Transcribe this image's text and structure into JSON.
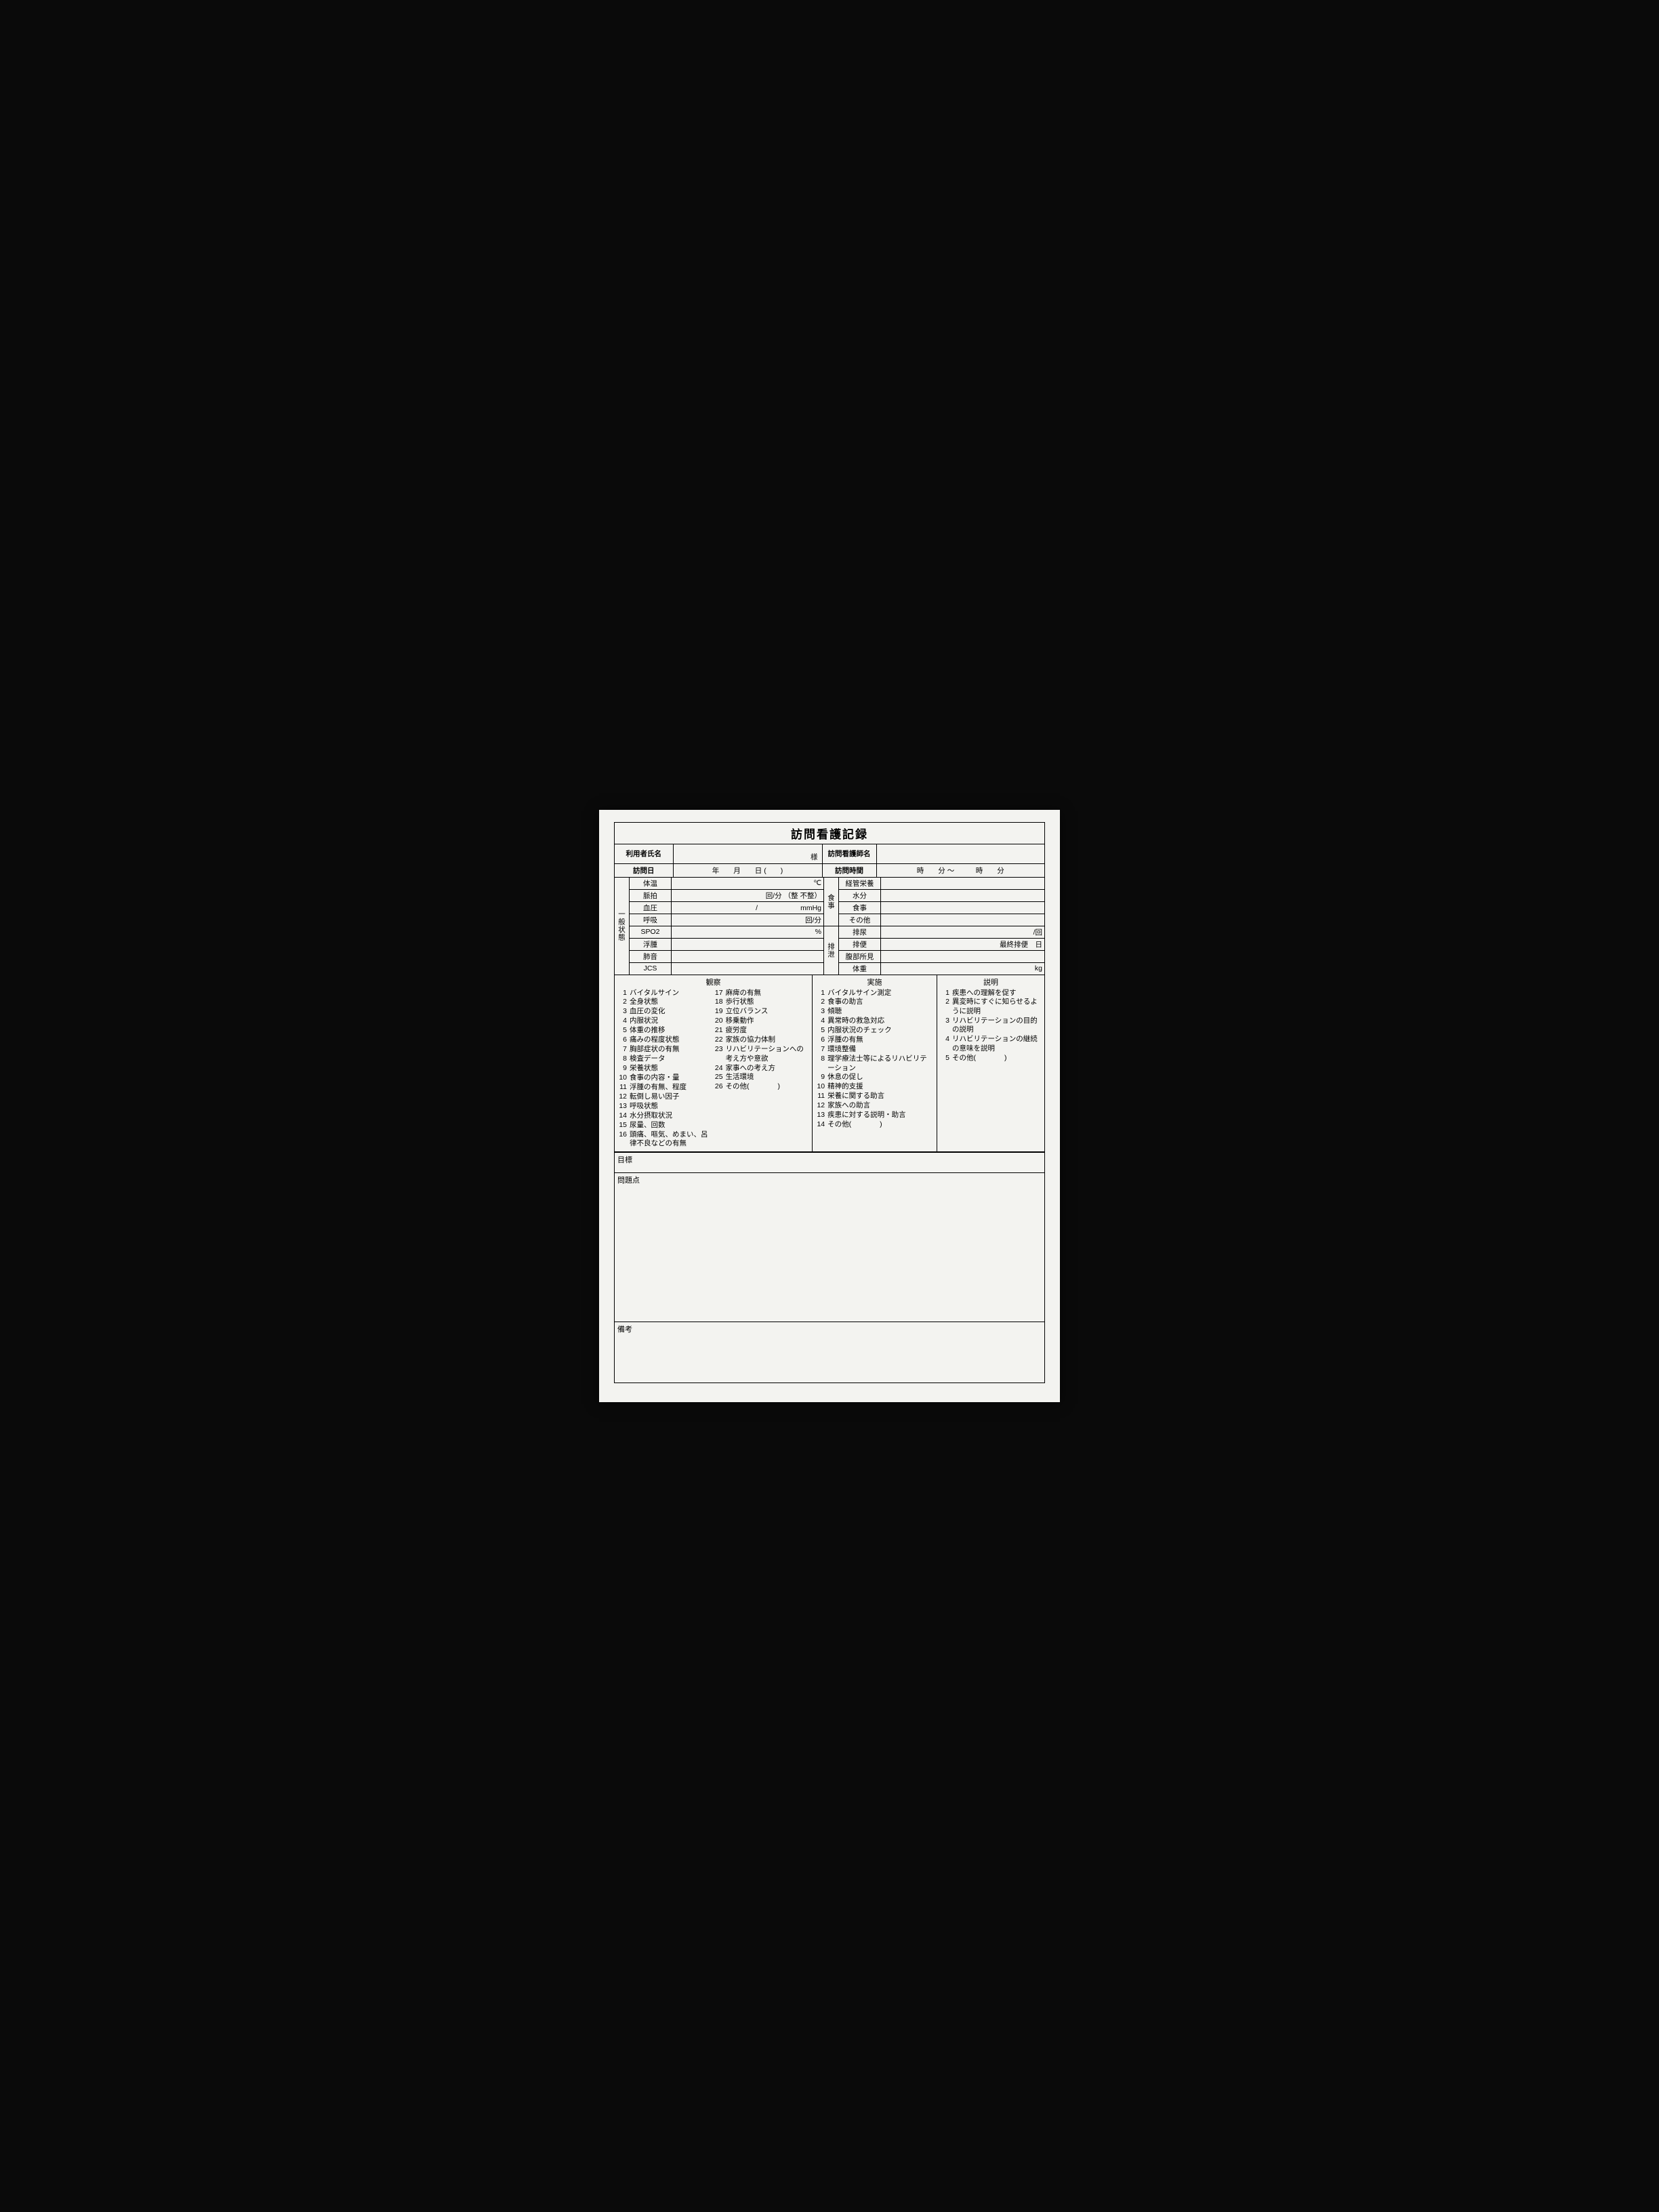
{
  "title": "訪問看護記録",
  "header": {
    "user_name_label": "利用者氏名",
    "user_name_suffix": "様",
    "nurse_label": "訪問看護師名",
    "visit_date_label": "訪問日",
    "visit_date_value": "年　　月　　日 (　　)",
    "visit_time_label": "訪問時間",
    "visit_time_value": "時　　分 ～　　　時　　分"
  },
  "general": {
    "section_label": "一般状態",
    "rows": {
      "temp": {
        "label": "体温",
        "unit": "℃"
      },
      "pulse": {
        "label": "脈拍",
        "unit": "回/分 （整 不整）"
      },
      "bp": {
        "label": "血圧",
        "unit": "/　　　　　　mmHg"
      },
      "resp": {
        "label": "呼吸",
        "unit": "回/分"
      },
      "spo2": {
        "label": "SPO2",
        "unit": "%"
      },
      "edema": {
        "label": "浮腫",
        "unit": ""
      },
      "lung": {
        "label": "肺音",
        "unit": ""
      },
      "jcs": {
        "label": "JCS",
        "unit": ""
      }
    }
  },
  "meal": {
    "section_label": "食事",
    "rows": {
      "tube": {
        "label": "経管栄養",
        "unit": ""
      },
      "water": {
        "label": "水分",
        "unit": ""
      },
      "meal": {
        "label": "食事",
        "unit": ""
      },
      "other": {
        "label": "その他",
        "unit": ""
      }
    }
  },
  "excretion": {
    "section_label": "排泄",
    "rows": {
      "urine": {
        "label": "排尿",
        "unit": "/回"
      },
      "stool": {
        "label": "排便",
        "unit": "最終排便　日"
      },
      "abdomen": {
        "label": "腹部所見",
        "unit": ""
      },
      "weight": {
        "label": "体重",
        "unit": "kg"
      }
    }
  },
  "observation": {
    "header": "観察",
    "left": [
      {
        "n": "1",
        "t": "バイタルサイン"
      },
      {
        "n": "2",
        "t": "全身状態"
      },
      {
        "n": "3",
        "t": "血圧の変化"
      },
      {
        "n": "4",
        "t": "内服状況"
      },
      {
        "n": "5",
        "t": "体重の推移"
      },
      {
        "n": "6",
        "t": "痛みの程度状態"
      },
      {
        "n": "7",
        "t": "胸部症状の有無"
      },
      {
        "n": "8",
        "t": "検査データ"
      },
      {
        "n": "9",
        "t": "栄養状態"
      },
      {
        "n": "10",
        "t": "食事の内容・量"
      },
      {
        "n": "11",
        "t": "浮腫の有無、程度"
      },
      {
        "n": "12",
        "t": "転倒し易い因子"
      },
      {
        "n": "13",
        "t": "呼吸状態"
      },
      {
        "n": "14",
        "t": "水分摂取状況"
      },
      {
        "n": "15",
        "t": "尿量、回数"
      },
      {
        "n": "16",
        "t": "頭痛、嘔気、めまい、呂律不良などの有無"
      }
    ],
    "right": [
      {
        "n": "17",
        "t": "麻痺の有無"
      },
      {
        "n": "18",
        "t": "歩行状態"
      },
      {
        "n": "19",
        "t": "立位バランス"
      },
      {
        "n": "20",
        "t": "移乗動作"
      },
      {
        "n": "21",
        "t": "疲労度"
      },
      {
        "n": "22",
        "t": "家族の協力体制"
      },
      {
        "n": "23",
        "t": "リハビリテーションへの考え方や意欲"
      },
      {
        "n": "24",
        "t": "家事への考え方"
      },
      {
        "n": "25",
        "t": "生活環境"
      },
      {
        "n": "26",
        "t": "その他(　　　　)"
      }
    ]
  },
  "implementation": {
    "header": "実施",
    "items": [
      {
        "n": "1",
        "t": "バイタルサイン測定"
      },
      {
        "n": "2",
        "t": "食事の助言"
      },
      {
        "n": "3",
        "t": "傾聴"
      },
      {
        "n": "4",
        "t": "異常時の救急対応"
      },
      {
        "n": "5",
        "t": "内服状況のチェック"
      },
      {
        "n": "6",
        "t": "浮腫の有無"
      },
      {
        "n": "7",
        "t": "環境整備"
      },
      {
        "n": "8",
        "t": "理学療法士等によるリハビリテーション"
      },
      {
        "n": "9",
        "t": "休息の促し"
      },
      {
        "n": "10",
        "t": "精神的支援"
      },
      {
        "n": "11",
        "t": "栄養に関する助言"
      },
      {
        "n": "12",
        "t": "家族への助言"
      },
      {
        "n": "13",
        "t": "疾患に対する説明・助言"
      },
      {
        "n": "14",
        "t": "その他(　　　　)"
      }
    ]
  },
  "explanation": {
    "header": "説明",
    "items": [
      {
        "n": "1",
        "t": "疾患への理解を促す"
      },
      {
        "n": "2",
        "t": "異変時にすぐに知らせるように説明"
      },
      {
        "n": "3",
        "t": "リハビリテーションの目的の説明"
      },
      {
        "n": "4",
        "t": "リハビリテーションの継続の意味を説明"
      },
      {
        "n": "5",
        "t": "その他(　　　　)"
      }
    ]
  },
  "freeboxes": {
    "goal": "目標",
    "problems": "問題点",
    "notes": "備考"
  }
}
